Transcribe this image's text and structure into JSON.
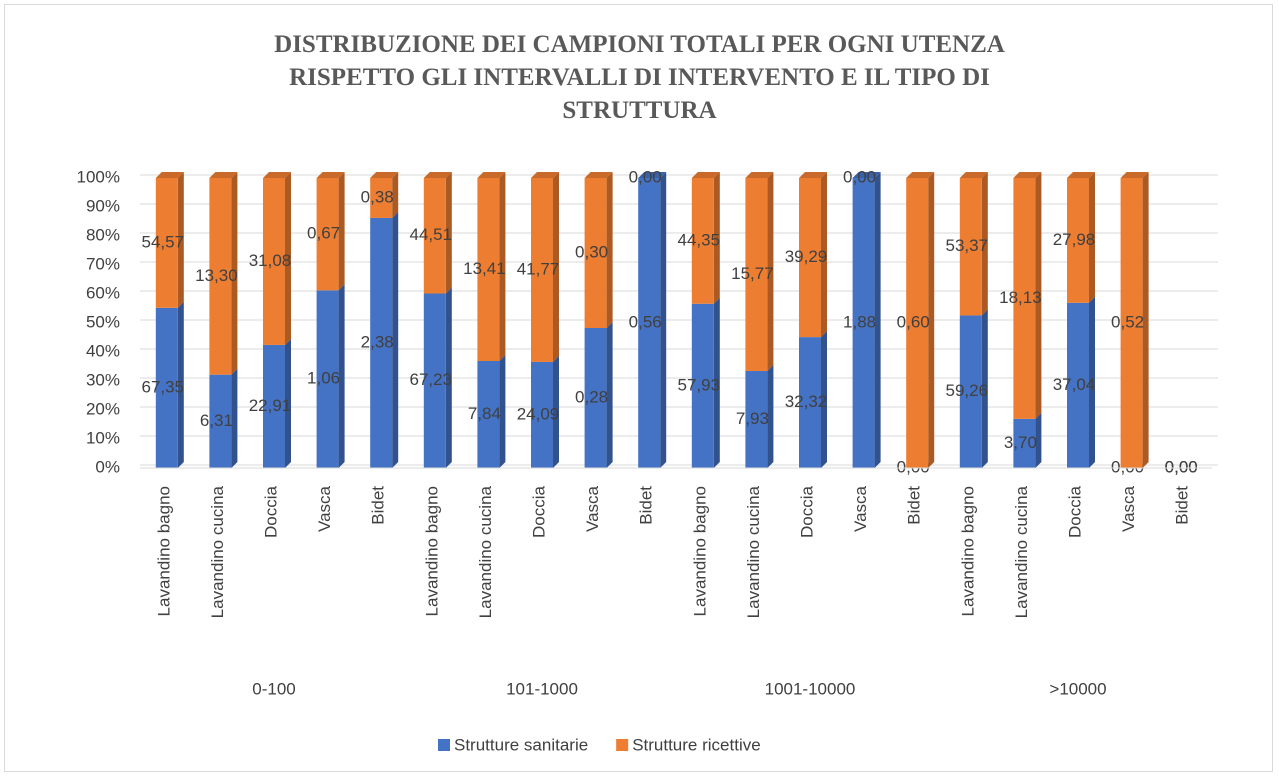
{
  "chart_data": {
    "type": "bar",
    "stacking": "percent",
    "title": "DISTRIBUZIONE DEI CAMPIONI TOTALI PER OGNI UTENZA RISPETTO GLI INTERVALLI DI INTERVENTO E IL TIPO DI STRUTTURA",
    "groups": [
      "0-100",
      "101-1000",
      "1001-10000",
      ">10000"
    ],
    "categories": [
      "Lavandino bagno",
      "Lavandino cucina",
      "Doccia",
      "Vasca",
      "Bidet",
      "Lavandino bagno",
      "Lavandino cucina",
      "Doccia",
      "Vasca",
      "Bidet",
      "Lavandino bagno",
      "Lavandino cucina",
      "Doccia",
      "Vasca",
      "Bidet",
      "Lavandino bagno",
      "Lavandino cucina",
      "Doccia",
      "Vasca",
      "Bidet"
    ],
    "series": [
      {
        "name": "Strutture sanitarie",
        "color": "#4472c4",
        "values": [
          67.35,
          6.31,
          22.91,
          1.06,
          2.38,
          67.23,
          7.84,
          24.09,
          0.28,
          0.56,
          57.93,
          7.93,
          32.32,
          1.88,
          0,
          59.26,
          3.7,
          37.04,
          0,
          0
        ],
        "value_labels": [
          "67,35",
          "6,31",
          "22,91",
          "1,06",
          "2,38",
          "67,23",
          "7,84",
          "24,09",
          "0,28",
          "0,56",
          "57,93",
          "7,93",
          "32,32",
          "1,88",
          "0,00",
          "59,26",
          "3,70",
          "37,04",
          "0,00",
          "0,00"
        ]
      },
      {
        "name": "Strutture ricettive",
        "color": "#ed7d31",
        "values": [
          54.57,
          13.3,
          31.08,
          0.67,
          0.38,
          44.51,
          13.41,
          41.77,
          0.3,
          0,
          44.35,
          15.77,
          39.29,
          0,
          0.6,
          53.37,
          18.13,
          27.98,
          0.52,
          0
        ],
        "value_labels": [
          "54,57",
          "13,30",
          "31,08",
          "0,67",
          "0,38",
          "44,51",
          "13,41",
          "41,77",
          "0,30",
          "0,00",
          "44,35",
          "15,77",
          "39,29",
          "0,00",
          "0,60",
          "53,37",
          "18,13",
          "27,98",
          "0,52",
          "0,00"
        ]
      }
    ],
    "ylim": [
      0,
      100
    ],
    "yticks": [
      {
        "value": 0,
        "label": "0%"
      },
      {
        "value": 10,
        "label": "10%"
      },
      {
        "value": 20,
        "label": "20%"
      },
      {
        "value": 30,
        "label": "30%"
      },
      {
        "value": 40,
        "label": "40%"
      },
      {
        "value": 50,
        "label": "50%"
      },
      {
        "value": 60,
        "label": "60%"
      },
      {
        "value": 70,
        "label": "70%"
      },
      {
        "value": 80,
        "label": "80%"
      },
      {
        "value": 90,
        "label": "90%"
      },
      {
        "value": 100,
        "label": "100%"
      }
    ],
    "grid": true,
    "legend": "bottom"
  }
}
